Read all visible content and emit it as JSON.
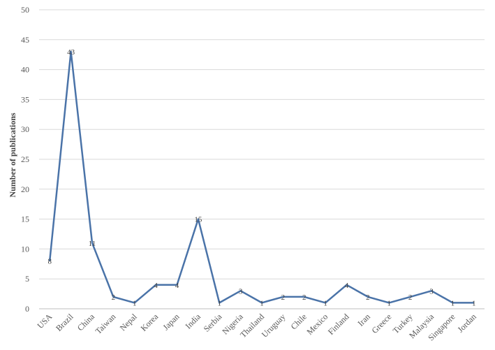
{
  "chart_data": {
    "type": "line",
    "categories": [
      "USA",
      "Brazil",
      "China",
      "Taiwan",
      "Nepal",
      "Korea",
      "Japan",
      "India",
      "Serbia",
      "Nigeria",
      "Thailand",
      "Uruguay",
      "Chile",
      "Mexico",
      "Finland",
      "Iran",
      "Greece",
      "Turkey",
      "Malaysia",
      "Singapore",
      "Jordan"
    ],
    "values": [
      8,
      43,
      11,
      2,
      1,
      4,
      4,
      15,
      1,
      3,
      1,
      2,
      2,
      1,
      4,
      2,
      1,
      2,
      3,
      1,
      1
    ],
    "data_labels": [
      "8",
      "43",
      "11",
      "2",
      "1",
      "4",
      "4",
      "15",
      "1",
      "3",
      "1",
      "2",
      "2",
      "1",
      "4",
      "2",
      "1",
      "2",
      "3",
      "1",
      "1"
    ],
    "title": "",
    "xlabel": "",
    "ylabel": "Number of publications",
    "ylim": [
      0,
      50
    ],
    "yticks": [
      0,
      5,
      10,
      15,
      20,
      25,
      30,
      35,
      40,
      45,
      50
    ],
    "grid": true,
    "line_color": "#4a73a8",
    "grid_color": "#d9d9d9",
    "text_color": "#595959"
  }
}
